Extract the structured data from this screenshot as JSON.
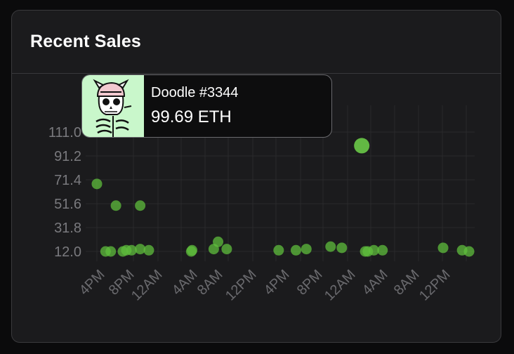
{
  "header": {
    "title": "Recent Sales"
  },
  "tooltip": {
    "name": "Doodle #3344",
    "price": "99.69 ETH",
    "thumbnail_icon": "skeleton-doodle-icon"
  },
  "colors": {
    "point": "#5fbe3c",
    "point_highlight": "#6fd44a"
  },
  "chart_data": {
    "type": "scatter",
    "title": "",
    "xlabel": "",
    "ylabel": "",
    "x_tick_labels": [
      "4PM",
      "8PM",
      "12AM",
      "4AM",
      "8AM",
      "12PM",
      "4PM",
      "8PM",
      "12AM",
      "4AM",
      "8AM",
      "12PM"
    ],
    "y_tick_labels": [
      "12.0",
      "31.8",
      "51.6",
      "71.4",
      "91.2",
      "111.0"
    ],
    "ylim": [
      12.0,
      111.0
    ],
    "grid": true,
    "x_unit_hours": "time axis from ~3PM day 1 to ~2PM day 3",
    "points": [
      {
        "x": 0.0,
        "y": 68.0
      },
      {
        "x": 1.0,
        "y": 12.0
      },
      {
        "x": 1.6,
        "y": 12.0
      },
      {
        "x": 2.2,
        "y": 50.0
      },
      {
        "x": 3.0,
        "y": 12.0
      },
      {
        "x": 3.4,
        "y": 13.0
      },
      {
        "x": 4.0,
        "y": 13.0
      },
      {
        "x": 5.0,
        "y": 50.0
      },
      {
        "x": 5.0,
        "y": 14.0
      },
      {
        "x": 6.0,
        "y": 13.0
      },
      {
        "x": 10.9,
        "y": 12.0
      },
      {
        "x": 11.0,
        "y": 13.0
      },
      {
        "x": 13.5,
        "y": 14.0
      },
      {
        "x": 14.0,
        "y": 20.0
      },
      {
        "x": 15.0,
        "y": 14.0
      },
      {
        "x": 21.0,
        "y": 13.0
      },
      {
        "x": 23.0,
        "y": 13.0
      },
      {
        "x": 24.2,
        "y": 14.0
      },
      {
        "x": 27.0,
        "y": 16.0
      },
      {
        "x": 28.3,
        "y": 15.0
      },
      {
        "x": 30.6,
        "y": 99.69,
        "highlight": true
      },
      {
        "x": 31.0,
        "y": 12.0
      },
      {
        "x": 31.3,
        "y": 12.0
      },
      {
        "x": 32.0,
        "y": 13.0
      },
      {
        "x": 33.0,
        "y": 13.0
      },
      {
        "x": 40.0,
        "y": 15.0
      },
      {
        "x": 42.2,
        "y": 13.0
      },
      {
        "x": 43.0,
        "y": 12.0
      }
    ]
  }
}
